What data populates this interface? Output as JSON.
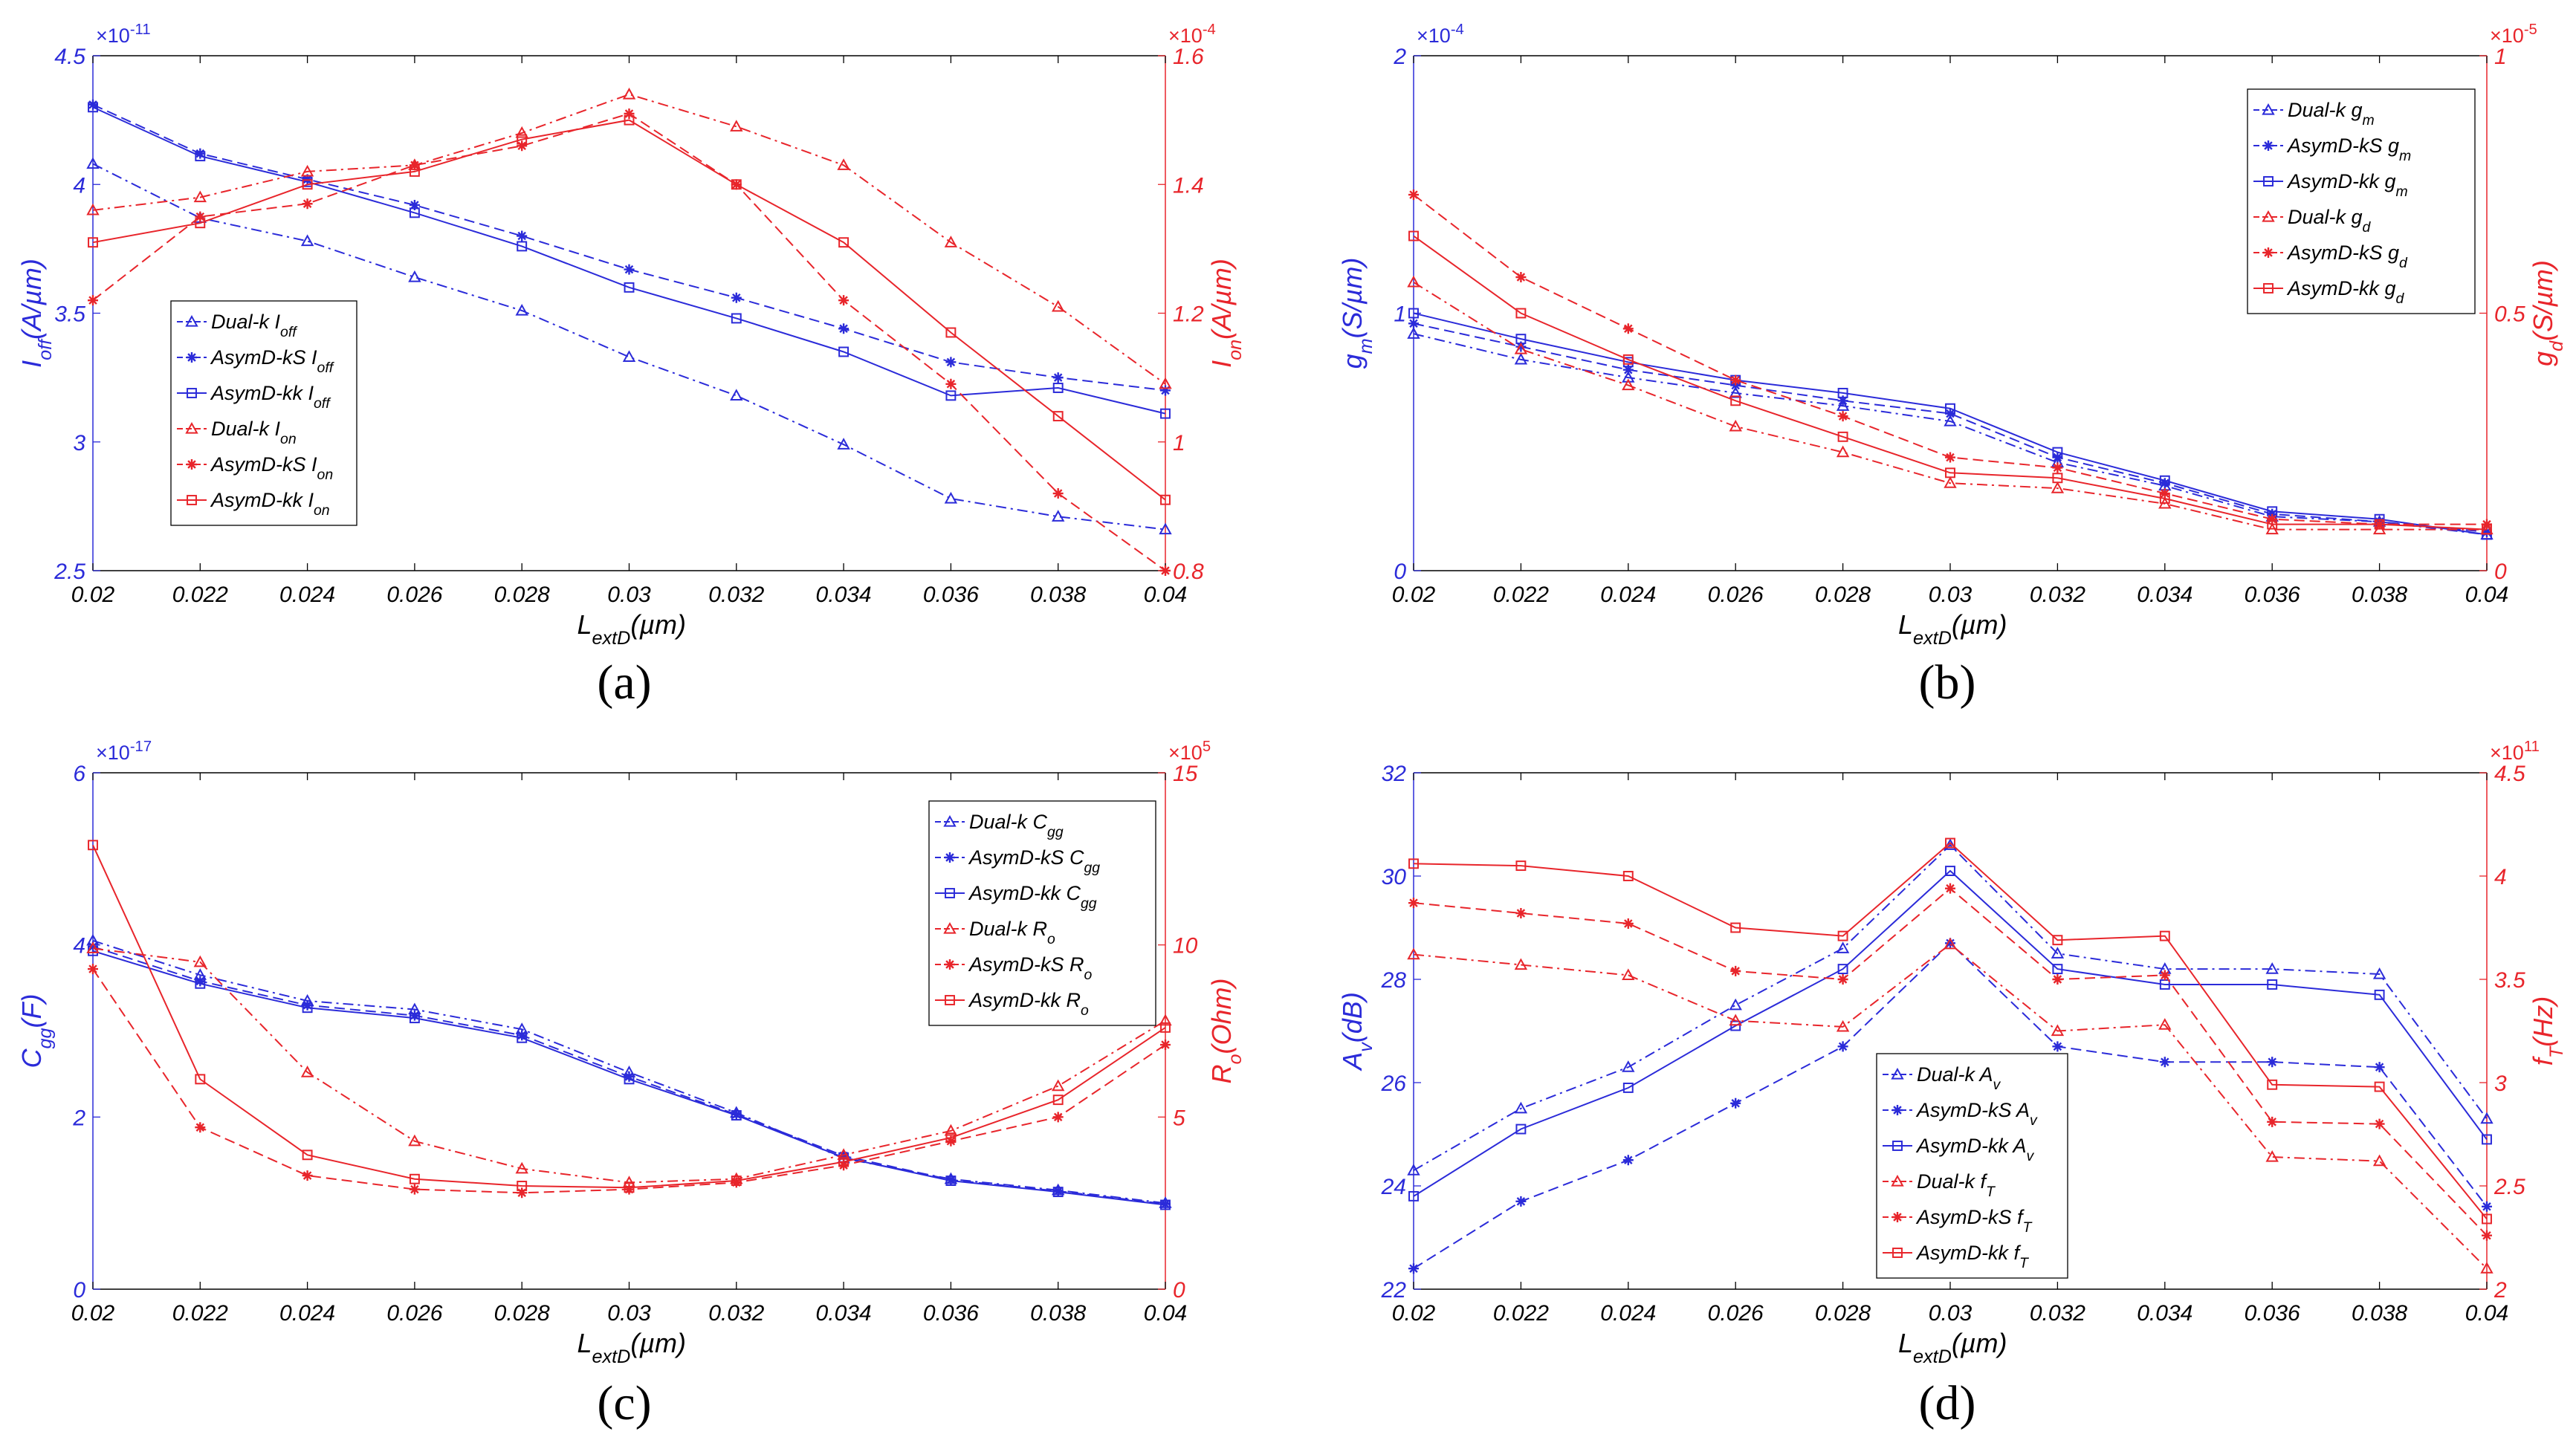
{
  "figure": {
    "colors": {
      "blue": "#2b2bd9",
      "red": "#e8252b",
      "frame": "#000000"
    }
  },
  "chart_data": [
    {
      "type": "line",
      "panel": "a",
      "caption": "(a)",
      "x": [
        0.02,
        0.022,
        0.024,
        0.026,
        0.028,
        0.03,
        0.032,
        0.034,
        0.036,
        0.038,
        0.04
      ],
      "xtick_labels": [
        "0.02",
        "0.022",
        "0.024",
        "0.026",
        "0.028",
        "0.03",
        "0.032",
        "0.034",
        "0.036",
        "0.038",
        "0.04"
      ],
      "xlabel": {
        "main": "L",
        "sub": "extD",
        "rest": "(µm)"
      },
      "xlim": [
        0.02,
        0.04
      ],
      "left_axis": {
        "ylabel": {
          "main": "I",
          "sub": "off",
          "rest": "(A/µm)"
        },
        "ylim": [
          2.5,
          4.5
        ],
        "ticks": [
          2.5,
          3,
          3.5,
          4,
          4.5
        ],
        "tick_labels": [
          "2.5",
          "3",
          "3.5",
          "4",
          "4.5"
        ],
        "multiplier": {
          "base": "×10",
          "exp": "-11"
        },
        "color": "#2b2bd9"
      },
      "right_axis": {
        "ylabel": {
          "main": "I",
          "sub": "on",
          "rest": "(A/µm)"
        },
        "ylim": [
          0.8,
          1.6
        ],
        "ticks": [
          0.8,
          1,
          1.2,
          1.4,
          1.6
        ],
        "tick_labels": [
          "0.8",
          "1",
          "1.2",
          "1.4",
          "1.6"
        ],
        "multiplier": {
          "base": "×10",
          "exp": "-4"
        },
        "color": "#e8252b"
      },
      "legend_position": "middle-left",
      "series": [
        {
          "name": "Dual-k I",
          "sub": "off",
          "axis": "left",
          "color": "#2b2bd9",
          "dash": "dashdot",
          "marker": "triangle",
          "values": [
            4.08,
            3.87,
            3.78,
            3.64,
            3.51,
            3.33,
            3.18,
            2.99,
            2.78,
            2.71,
            2.66
          ]
        },
        {
          "name": "AsymD-kS I",
          "sub": "off",
          "axis": "left",
          "color": "#2b2bd9",
          "dash": "dashed",
          "marker": "star",
          "values": [
            4.31,
            4.12,
            4.02,
            3.92,
            3.8,
            3.67,
            3.56,
            3.44,
            3.31,
            3.25,
            3.2
          ]
        },
        {
          "name": "AsymD-kk I",
          "sub": "off",
          "axis": "left",
          "color": "#2b2bd9",
          "dash": "solid",
          "marker": "square",
          "values": [
            4.3,
            4.11,
            4.01,
            3.89,
            3.76,
            3.6,
            3.48,
            3.35,
            3.18,
            3.21,
            3.11
          ]
        },
        {
          "name": "Dual-k I",
          "sub": "on",
          "axis": "right",
          "color": "#e8252b",
          "dash": "dashdot",
          "marker": "triangle",
          "values": [
            1.36,
            1.38,
            1.42,
            1.43,
            1.48,
            1.54,
            1.49,
            1.43,
            1.31,
            1.21,
            1.09
          ]
        },
        {
          "name": "AsymD-kS I",
          "sub": "on",
          "axis": "right",
          "color": "#e8252b",
          "dash": "dashed",
          "marker": "star",
          "values": [
            1.22,
            1.35,
            1.37,
            1.43,
            1.46,
            1.51,
            1.4,
            1.22,
            1.09,
            0.92,
            0.8
          ]
        },
        {
          "name": "AsymD-kk I",
          "sub": "on",
          "axis": "right",
          "color": "#e8252b",
          "dash": "solid",
          "marker": "square",
          "values": [
            1.31,
            1.34,
            1.4,
            1.42,
            1.47,
            1.5,
            1.4,
            1.31,
            1.17,
            1.04,
            0.91
          ]
        }
      ]
    },
    {
      "type": "line",
      "panel": "b",
      "caption": "(b)",
      "x": [
        0.02,
        0.022,
        0.024,
        0.026,
        0.028,
        0.03,
        0.032,
        0.034,
        0.036,
        0.038,
        0.04
      ],
      "xtick_labels": [
        "0.02",
        "0.022",
        "0.024",
        "0.026",
        "0.028",
        "0.03",
        "0.032",
        "0.034",
        "0.036",
        "0.038",
        "0.04"
      ],
      "xlabel": {
        "main": "L",
        "sub": "extD",
        "rest": "(µm)"
      },
      "xlim": [
        0.02,
        0.04
      ],
      "left_axis": {
        "ylabel": {
          "main": "g",
          "sub": "m",
          "rest": "(S/µm)"
        },
        "ylim": [
          0,
          2
        ],
        "ticks": [
          0,
          1,
          2
        ],
        "tick_labels": [
          "0",
          "1",
          "2"
        ],
        "multiplier": {
          "base": "×10",
          "exp": "-4"
        },
        "color": "#2b2bd9"
      },
      "right_axis": {
        "ylabel": {
          "main": "g",
          "sub": "d",
          "rest": "(S/µm)"
        },
        "ylim": [
          0,
          1
        ],
        "ticks": [
          0,
          0.5,
          1
        ],
        "tick_labels": [
          "0",
          "0.5",
          "1"
        ],
        "multiplier": {
          "base": "×10",
          "exp": "-5"
        },
        "color": "#e8252b"
      },
      "legend_position": "top-right",
      "series": [
        {
          "name": "Dual-k g",
          "sub": "m",
          "axis": "left",
          "color": "#2b2bd9",
          "dash": "dashdot",
          "marker": "triangle",
          "values": [
            0.92,
            0.82,
            0.75,
            0.69,
            0.64,
            0.58,
            0.42,
            0.33,
            0.21,
            0.19,
            0.14
          ]
        },
        {
          "name": "AsymD-kS g",
          "sub": "m",
          "axis": "left",
          "color": "#2b2bd9",
          "dash": "dashed",
          "marker": "star",
          "values": [
            0.96,
            0.87,
            0.78,
            0.72,
            0.66,
            0.61,
            0.44,
            0.34,
            0.22,
            0.19,
            0.15
          ]
        },
        {
          "name": "AsymD-kk g",
          "sub": "m",
          "axis": "left",
          "color": "#2b2bd9",
          "dash": "solid",
          "marker": "square",
          "values": [
            1.0,
            0.9,
            0.81,
            0.74,
            0.69,
            0.63,
            0.46,
            0.35,
            0.23,
            0.2,
            0.14
          ]
        },
        {
          "name": "Dual-k g",
          "sub": "d",
          "axis": "right",
          "color": "#e8252b",
          "dash": "dashdot",
          "marker": "triangle",
          "values": [
            0.56,
            0.43,
            0.36,
            0.28,
            0.23,
            0.17,
            0.16,
            0.13,
            0.08,
            0.08,
            0.08
          ]
        },
        {
          "name": "AsymD-kS g",
          "sub": "d",
          "axis": "right",
          "color": "#e8252b",
          "dash": "dashed",
          "marker": "star",
          "values": [
            0.73,
            0.57,
            0.47,
            0.37,
            0.3,
            0.22,
            0.2,
            0.15,
            0.1,
            0.09,
            0.09
          ]
        },
        {
          "name": "AsymD-kk g",
          "sub": "d",
          "axis": "right",
          "color": "#e8252b",
          "dash": "solid",
          "marker": "square",
          "values": [
            0.65,
            0.5,
            0.41,
            0.33,
            0.26,
            0.19,
            0.18,
            0.14,
            0.09,
            0.09,
            0.08
          ]
        }
      ]
    },
    {
      "type": "line",
      "panel": "c",
      "caption": "(c)",
      "x": [
        0.02,
        0.022,
        0.024,
        0.026,
        0.028,
        0.03,
        0.032,
        0.034,
        0.036,
        0.038,
        0.04
      ],
      "xtick_labels": [
        "0.02",
        "0.022",
        "0.024",
        "0.026",
        "0.028",
        "0.03",
        "0.032",
        "0.034",
        "0.036",
        "0.038",
        "0.04"
      ],
      "xlabel": {
        "main": "L",
        "sub": "extD",
        "rest": "(µm)"
      },
      "xlim": [
        0.02,
        0.04
      ],
      "left_axis": {
        "ylabel": {
          "main": "C",
          "sub": "gg",
          "rest": "(F)"
        },
        "ylim": [
          0,
          6
        ],
        "ticks": [
          0,
          2,
          4,
          6
        ],
        "tick_labels": [
          "0",
          "2",
          "4",
          "6"
        ],
        "multiplier": {
          "base": "×10",
          "exp": "-17"
        },
        "color": "#2b2bd9"
      },
      "right_axis": {
        "ylabel": {
          "main": "R",
          "sub": "o",
          "rest": "(Ohm)"
        },
        "ylim": [
          0,
          15
        ],
        "ticks": [
          0,
          5,
          10,
          15
        ],
        "tick_labels": [
          "0",
          "5",
          "10",
          "15"
        ],
        "multiplier": {
          "base": "×10",
          "exp": "5"
        },
        "color": "#e8252b"
      },
      "legend_position": "top-right",
      "series": [
        {
          "name": "Dual-k C",
          "sub": "gg",
          "axis": "left",
          "color": "#2b2bd9",
          "dash": "dashdot",
          "marker": "triangle",
          "values": [
            4.05,
            3.65,
            3.35,
            3.25,
            3.02,
            2.52,
            2.05,
            1.52,
            1.28,
            1.15,
            1.0
          ]
        },
        {
          "name": "AsymD-kS C",
          "sub": "gg",
          "axis": "left",
          "color": "#2b2bd9",
          "dash": "dashed",
          "marker": "star",
          "values": [
            3.98,
            3.58,
            3.3,
            3.18,
            2.95,
            2.47,
            2.03,
            1.55,
            1.27,
            1.14,
            0.99
          ]
        },
        {
          "name": "AsymD-kk C",
          "sub": "gg",
          "axis": "left",
          "color": "#2b2bd9",
          "dash": "solid",
          "marker": "square",
          "values": [
            3.93,
            3.55,
            3.27,
            3.15,
            2.92,
            2.44,
            2.02,
            1.53,
            1.26,
            1.13,
            0.98
          ]
        },
        {
          "name": "Dual-k R",
          "sub": "o",
          "axis": "right",
          "color": "#e8252b",
          "dash": "dashdot",
          "marker": "triangle",
          "values": [
            9.9,
            9.5,
            6.3,
            4.3,
            3.5,
            3.1,
            3.2,
            3.9,
            4.6,
            5.9,
            7.8
          ]
        },
        {
          "name": "AsymD-kS R",
          "sub": "o",
          "axis": "right",
          "color": "#e8252b",
          "dash": "dashed",
          "marker": "star",
          "values": [
            9.3,
            4.7,
            3.3,
            2.9,
            2.8,
            2.9,
            3.1,
            3.6,
            4.3,
            5.0,
            7.1
          ]
        },
        {
          "name": "AsymD-kk R",
          "sub": "o",
          "axis": "right",
          "color": "#e8252b",
          "dash": "solid",
          "marker": "square",
          "values": [
            12.9,
            6.1,
            3.9,
            3.2,
            3.0,
            2.95,
            3.15,
            3.7,
            4.4,
            5.5,
            7.6
          ]
        }
      ]
    },
    {
      "type": "line",
      "panel": "d",
      "caption": "(d)",
      "x": [
        0.02,
        0.022,
        0.024,
        0.026,
        0.028,
        0.03,
        0.032,
        0.034,
        0.036,
        0.038,
        0.04
      ],
      "xtick_labels": [
        "0.02",
        "0.022",
        "0.024",
        "0.026",
        "0.028",
        "0.03",
        "0.032",
        "0.034",
        "0.036",
        "0.038",
        "0.04"
      ],
      "xlabel": {
        "main": "L",
        "sub": "extD",
        "rest": "(µm)"
      },
      "xlim": [
        0.02,
        0.04
      ],
      "left_axis": {
        "ylabel": {
          "main": "A",
          "sub": "v",
          "rest": "(dB)"
        },
        "ylim": [
          22,
          32
        ],
        "ticks": [
          22,
          24,
          26,
          28,
          30,
          32
        ],
        "tick_labels": [
          "22",
          "24",
          "26",
          "28",
          "30",
          "32"
        ],
        "multiplier": null,
        "color": "#2b2bd9"
      },
      "right_axis": {
        "ylabel": {
          "main": "f",
          "sub": "T",
          "rest": "(Hz)"
        },
        "ylim": [
          2,
          4.5
        ],
        "ticks": [
          2,
          2.5,
          3,
          3.5,
          4,
          4.5
        ],
        "tick_labels": [
          "2",
          "2.5",
          "3",
          "3.5",
          "4",
          "4.5"
        ],
        "multiplier": {
          "base": "×10",
          "exp": "11"
        },
        "color": "#e8252b"
      },
      "legend_position": "bottom-center",
      "series": [
        {
          "name": "Dual-k A",
          "sub": "v",
          "axis": "left",
          "color": "#2b2bd9",
          "dash": "dashdot",
          "marker": "triangle",
          "values": [
            24.3,
            25.5,
            26.3,
            27.5,
            28.6,
            30.6,
            28.5,
            28.2,
            28.2,
            28.1,
            25.3
          ]
        },
        {
          "name": "AsymD-kS A",
          "sub": "v",
          "axis": "left",
          "color": "#2b2bd9",
          "dash": "dashed",
          "marker": "star",
          "values": [
            22.4,
            23.7,
            24.5,
            25.6,
            26.7,
            28.7,
            26.7,
            26.4,
            26.4,
            26.3,
            23.6
          ]
        },
        {
          "name": "AsymD-kk A",
          "sub": "v",
          "axis": "left",
          "color": "#2b2bd9",
          "dash": "solid",
          "marker": "square",
          "values": [
            23.8,
            25.1,
            25.9,
            27.1,
            28.2,
            30.1,
            28.2,
            27.9,
            27.9,
            27.7,
            24.9
          ]
        },
        {
          "name": "Dual-k f",
          "sub": "T",
          "axis": "right",
          "color": "#e8252b",
          "dash": "dashdot",
          "marker": "triangle",
          "values": [
            3.62,
            3.57,
            3.52,
            3.3,
            3.27,
            3.67,
            3.25,
            3.28,
            2.64,
            2.62,
            2.1
          ]
        },
        {
          "name": "AsymD-kS f",
          "sub": "T",
          "axis": "right",
          "color": "#e8252b",
          "dash": "dashed",
          "marker": "star",
          "values": [
            3.87,
            3.82,
            3.77,
            3.54,
            3.5,
            3.94,
            3.5,
            3.52,
            2.81,
            2.8,
            2.26
          ]
        },
        {
          "name": "AsymD-kk f",
          "sub": "T",
          "axis": "right",
          "color": "#e8252b",
          "dash": "solid",
          "marker": "square",
          "values": [
            4.06,
            4.05,
            4.0,
            3.75,
            3.71,
            4.16,
            3.69,
            3.71,
            2.99,
            2.98,
            2.34
          ]
        }
      ]
    }
  ]
}
